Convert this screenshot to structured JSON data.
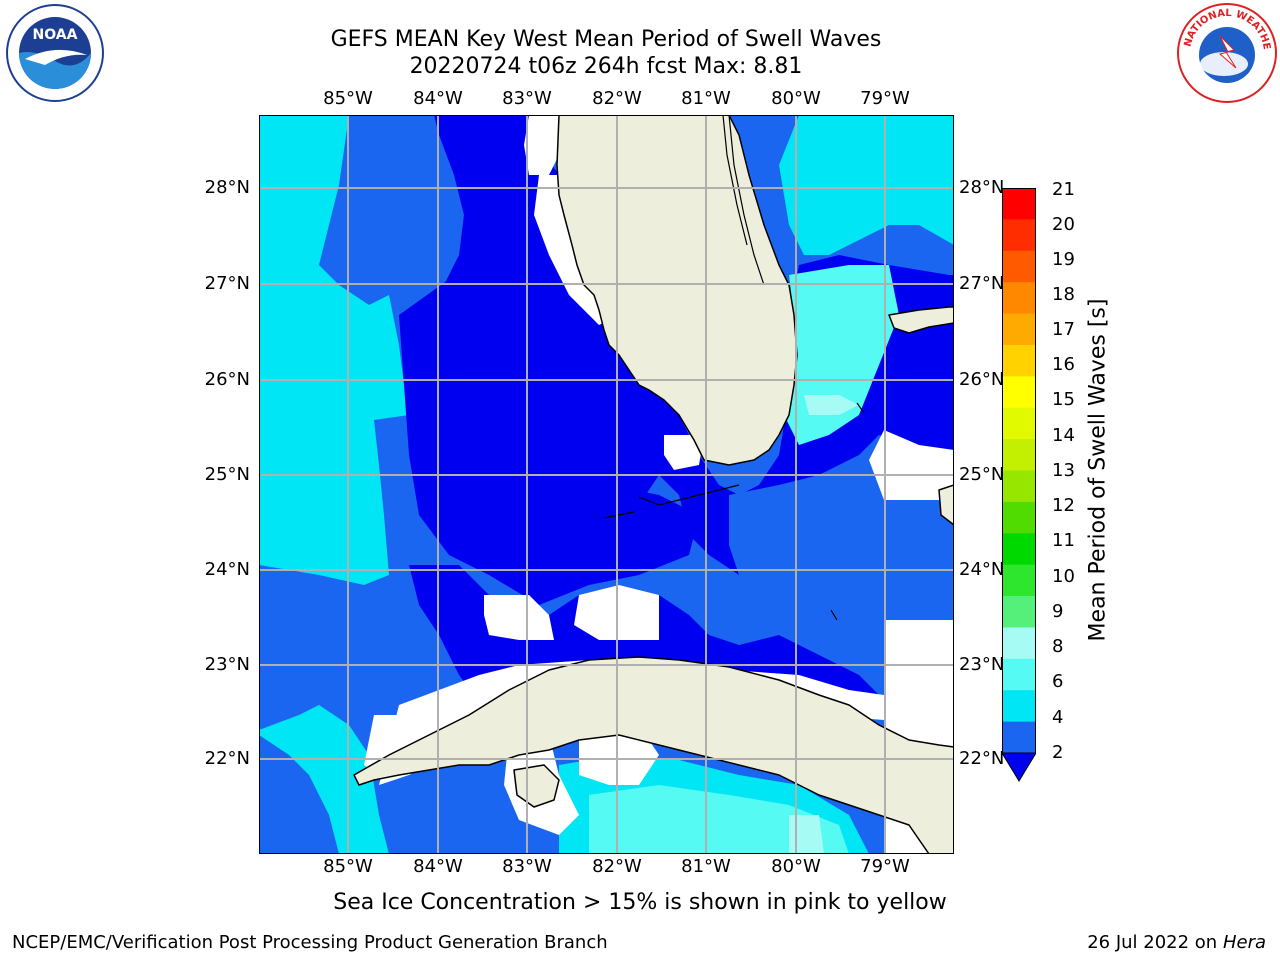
{
  "title": {
    "line1": "GEFS MEAN Key West Mean Period of Swell Waves",
    "line2": "20220724 t06z 264h fcst   Max: 8.81"
  },
  "map": {
    "longitude_labels": [
      "85°W",
      "84°W",
      "83°W",
      "82°W",
      "81°W",
      "80°W",
      "79°W"
    ],
    "latitude_labels": [
      "28°N",
      "27°N",
      "26°N",
      "25°N",
      "24°N",
      "23°N",
      "22°N"
    ],
    "ocean_colors": {
      "band_2_4": "#0000f0",
      "band_4_6": "#1a66f0",
      "band_6_7": "#00e6f5",
      "band_7_8": "#55fbf2",
      "band_8_9": "#a6fcf4",
      "land": "#eeeedc",
      "grid": "#b0b0b0"
    }
  },
  "colorbar": {
    "title": "Mean Period of Swell Waves [s]",
    "tick_labels": [
      "21",
      "20",
      "19",
      "18",
      "17",
      "16",
      "15",
      "14",
      "13",
      "12",
      "11",
      "10",
      "9",
      "8",
      "6",
      "4",
      "2"
    ],
    "colors": [
      "#ff0000",
      "#ff2d00",
      "#ff5a00",
      "#ff8800",
      "#ffaa00",
      "#ffd200",
      "#ffff00",
      "#e1fa00",
      "#c3f000",
      "#97e600",
      "#50dc00",
      "#00d900",
      "#2ee62e",
      "#54f07a",
      "#a6fcf4",
      "#55fbf2",
      "#00e6f5",
      "#1a66f0"
    ],
    "extend_color": "#0000f0"
  },
  "notes": {
    "sea_ice": "Sea Ice Concentration > 15% is shown in pink to yellow"
  },
  "footer": {
    "left": "NCEP/EMC/Verification Post Processing Product Generation Branch",
    "right_date": "26 Jul 2022 on ",
    "right_machine": "Hera"
  },
  "logos": {
    "noaa": "noaa-logo",
    "nws": "national-weather-service-logo",
    "noaa_text": "NOAA",
    "nws_text": "NATIONAL WEATHER SERVICE"
  }
}
